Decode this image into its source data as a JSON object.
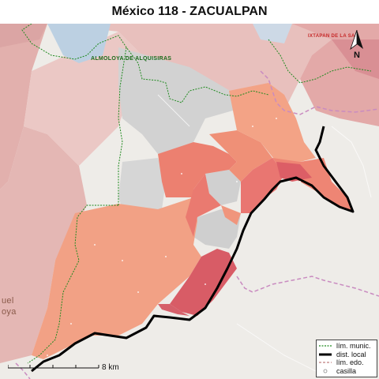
{
  "title": "México 118 - ZACUALPAN",
  "map": {
    "labels": {
      "almoloya": "ALMOLOYA DE ALQUISIRAS",
      "ixtapan": "IXTAPAN DE LA SAL",
      "city_fragment_1": "uel",
      "city_fragment_2": "oya"
    },
    "north_label": "N",
    "scale_label": "8 km"
  },
  "legend": {
    "items": [
      {
        "label": "lím. munic.",
        "symbol": "green-dashed-line"
      },
      {
        "label": "dist. local",
        "symbol": "thick-black-line"
      },
      {
        "label": "lím. edo.",
        "symbol": "dashed-line"
      },
      {
        "label": "casilla",
        "symbol": "small-circle"
      }
    ]
  },
  "colors": {
    "district_boundary": "#000000",
    "municipal_boundary": "#1f8a1f",
    "state_boundary": "#c98bc0",
    "district_light": "#f2a185",
    "district_medium": "#ec8070",
    "district_dark": "#d85c66",
    "no_data": "#cfcfcf",
    "background_neighbors": "#e9b9b6",
    "outside_terrain": "#eeece8"
  }
}
